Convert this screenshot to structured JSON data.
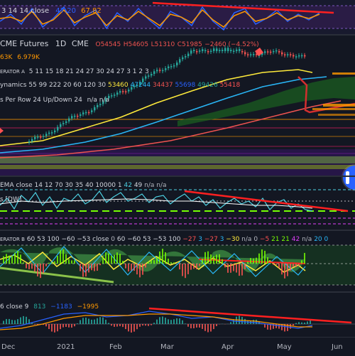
{
  "panes": {
    "stoch": {
      "label_params": "3 14 14 close",
      "value1": "47.20",
      "value2": "67.82",
      "color1": "#2962ff",
      "color2": "#ff9800"
    },
    "main": {
      "symbol": "CME Futures",
      "interval": "1D",
      "exchange": "CME",
      "open": "O54545",
      "high": "H54605",
      "low": "L51310",
      "close": "C51985",
      "change": "−2460 (−4.52%)",
      "volume_a": "63K",
      "volume_b": "6.979K",
      "ind_a_name": "ERATOR A",
      "ind_a_params": "5 11 15 18 21 24 27 30 24 27 3 1 2 3",
      "ind_b_name": "ynamics",
      "ind_b_params": "55 99 222 20 60 120 30",
      "ind_b_v1": "53460",
      "ind_b_v2": "47244",
      "ind_b_v3": "34437",
      "ind_b_v4": "55698",
      "ind_b_v5": "49426",
      "ind_b_v6": "55418",
      "ind_c_text": "s Per Row 24 Up/Down 24",
      "ind_c_na": "n/a n/a"
    },
    "ema": {
      "label": "EMA close 14 12 70 30 35 40 10000 1",
      "v1": "42",
      "v2": "49",
      "na": "n/a n/a",
      "sub": "s [DW]"
    },
    "osc_b": {
      "name": "ERATOR B",
      "params": "60 53 100 −60 −53 close",
      "v0": "0",
      "v1": "60",
      "v2": "−60",
      "v3": "53",
      "v4": "−53",
      "v5": "100",
      "v6": "−27",
      "v7": "3",
      "v8": "−27",
      "v9": "3",
      "v10": "−30",
      "na": "n/a",
      "v11": "0",
      "v12": "−5",
      "v13": "21",
      "v14": "21",
      "v15": "42",
      "na2": "n/a",
      "v16": "20",
      "v17": "0"
    },
    "macd": {
      "label": "6 close 9",
      "v1": "813",
      "v2": "−1183",
      "v3": "−1995"
    }
  },
  "time_axis": [
    "Dec",
    "2021",
    "Feb",
    "Mar",
    "Apr",
    "May",
    "Jun"
  ],
  "colors": {
    "background": "#131722",
    "up": "#26a69a",
    "down": "#ef5350",
    "trend": "#ff2020"
  }
}
